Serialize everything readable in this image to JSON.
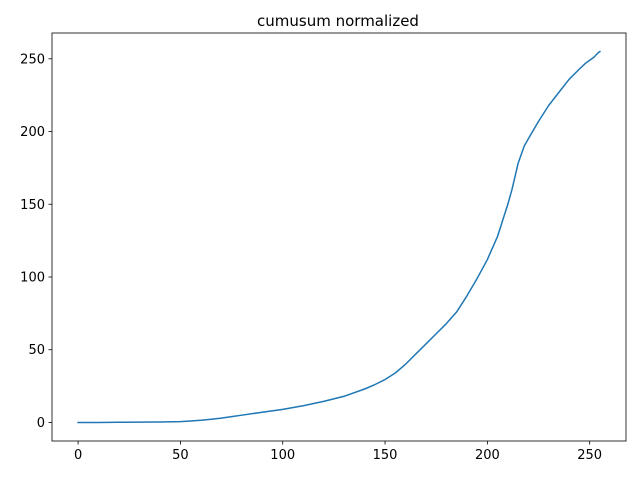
{
  "chart_data": {
    "type": "line",
    "title": "cumusum normalized",
    "xlabel": "",
    "ylabel": "",
    "xlim": [
      -12.75,
      267.75
    ],
    "ylim": [
      -12.75,
      267.75
    ],
    "xticks": [
      0,
      50,
      100,
      150,
      200,
      250
    ],
    "yticks": [
      0,
      50,
      100,
      150,
      200,
      250
    ],
    "grid": false,
    "series": [
      {
        "color": "#1f77b4",
        "x": [
          0,
          10,
          20,
          30,
          40,
          50,
          55,
          60,
          65,
          70,
          75,
          80,
          90,
          100,
          110,
          120,
          130,
          140,
          145,
          150,
          155,
          160,
          165,
          170,
          175,
          180,
          185,
          190,
          195,
          200,
          205,
          210,
          212,
          215,
          218,
          220,
          225,
          230,
          235,
          240,
          245,
          248,
          250,
          252,
          254,
          255
        ],
        "y": [
          0,
          0,
          0.1,
          0.2,
          0.3,
          0.6,
          1.0,
          1.5,
          2.2,
          3.0,
          4.0,
          5.0,
          7.0,
          9.0,
          11.5,
          14.5,
          18.0,
          23.0,
          26.0,
          29.5,
          34.0,
          40.0,
          47.0,
          54.0,
          61.0,
          68.0,
          76.0,
          87.0,
          99.0,
          112.0,
          128.0,
          150.0,
          160.0,
          178.0,
          190.0,
          195.0,
          207.0,
          218.0,
          227.0,
          236.0,
          243.0,
          247.0,
          249.0,
          251.0,
          254.0,
          255.0
        ]
      }
    ]
  }
}
